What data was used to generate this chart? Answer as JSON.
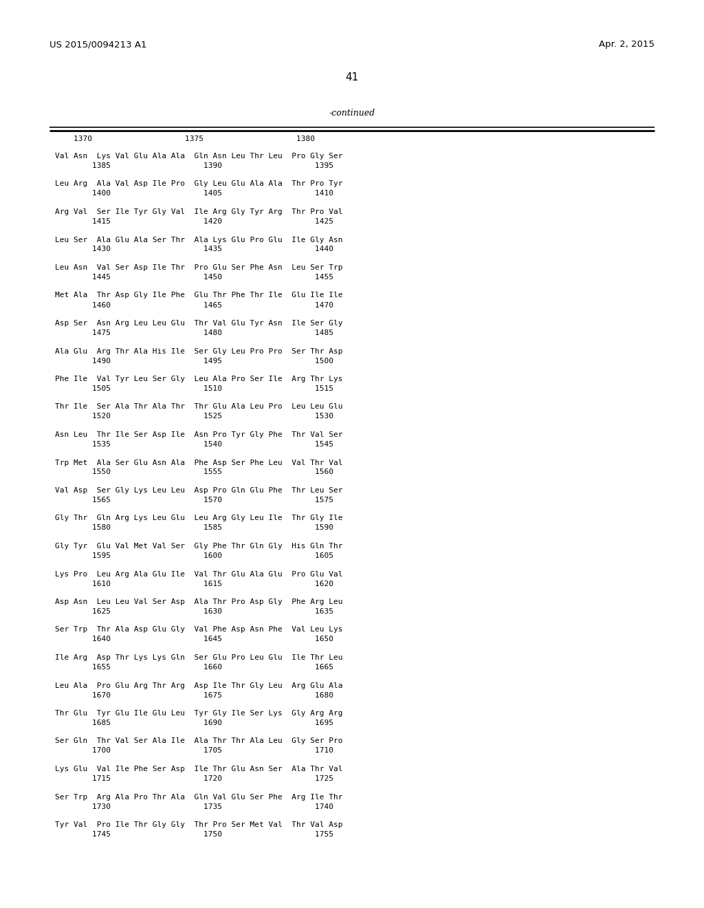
{
  "patent_number": "US 2015/0094213 A1",
  "date": "Apr. 2, 2015",
  "page_number": "41",
  "continued_label": "-continued",
  "background_color": "#ffffff",
  "text_color": "#000000",
  "number_line": "    1370                    1375                    1380",
  "sequence_lines": [
    [
      "Val Asn  Lys Val Glu Ala Ala  Gln Asn Leu Thr Leu  Pro Gly Ser",
      "        1385                    1390                    1395"
    ],
    [
      "Leu Arg  Ala Val Asp Ile Pro  Gly Leu Glu Ala Ala  Thr Pro Tyr",
      "        1400                    1405                    1410"
    ],
    [
      "Arg Val  Ser Ile Tyr Gly Val  Ile Arg Gly Tyr Arg  Thr Pro Val",
      "        1415                    1420                    1425"
    ],
    [
      "Leu Ser  Ala Glu Ala Ser Thr  Ala Lys Glu Pro Glu  Ile Gly Asn",
      "        1430                    1435                    1440"
    ],
    [
      "Leu Asn  Val Ser Asp Ile Thr  Pro Glu Ser Phe Asn  Leu Ser Trp",
      "        1445                    1450                    1455"
    ],
    [
      "Met Ala  Thr Asp Gly Ile Phe  Glu Thr Phe Thr Ile  Glu Ile Ile",
      "        1460                    1465                    1470"
    ],
    [
      "Asp Ser  Asn Arg Leu Leu Glu  Thr Val Glu Tyr Asn  Ile Ser Gly",
      "        1475                    1480                    1485"
    ],
    [
      "Ala Glu  Arg Thr Ala His Ile  Ser Gly Leu Pro Pro  Ser Thr Asp",
      "        1490                    1495                    1500"
    ],
    [
      "Phe Ile  Val Tyr Leu Ser Gly  Leu Ala Pro Ser Ile  Arg Thr Lys",
      "        1505                    1510                    1515"
    ],
    [
      "Thr Ile  Ser Ala Thr Ala Thr  Thr Glu Ala Leu Pro  Leu Leu Glu",
      "        1520                    1525                    1530"
    ],
    [
      "Asn Leu  Thr Ile Ser Asp Ile  Asn Pro Tyr Gly Phe  Thr Val Ser",
      "        1535                    1540                    1545"
    ],
    [
      "Trp Met  Ala Ser Glu Asn Ala  Phe Asp Ser Phe Leu  Val Thr Val",
      "        1550                    1555                    1560"
    ],
    [
      "Val Asp  Ser Gly Lys Leu Leu  Asp Pro Gln Glu Phe  Thr Leu Ser",
      "        1565                    1570                    1575"
    ],
    [
      "Gly Thr  Gln Arg Lys Leu Glu  Leu Arg Gly Leu Ile  Thr Gly Ile",
      "        1580                    1585                    1590"
    ],
    [
      "Gly Tyr  Glu Val Met Val Ser  Gly Phe Thr Gln Gly  His Gln Thr",
      "        1595                    1600                    1605"
    ],
    [
      "Lys Pro  Leu Arg Ala Glu Ile  Val Thr Glu Ala Glu  Pro Glu Val",
      "        1610                    1615                    1620"
    ],
    [
      "Asp Asn  Leu Leu Val Ser Asp  Ala Thr Pro Asp Gly  Phe Arg Leu",
      "        1625                    1630                    1635"
    ],
    [
      "Ser Trp  Thr Ala Asp Glu Gly  Val Phe Asp Asn Phe  Val Leu Lys",
      "        1640                    1645                    1650"
    ],
    [
      "Ile Arg  Asp Thr Lys Lys Gln  Ser Glu Pro Leu Glu  Ile Thr Leu",
      "        1655                    1660                    1665"
    ],
    [
      "Leu Ala  Pro Glu Arg Thr Arg  Asp Ile Thr Gly Leu  Arg Glu Ala",
      "        1670                    1675                    1680"
    ],
    [
      "Thr Glu  Tyr Glu Ile Glu Leu  Tyr Gly Ile Ser Lys  Gly Arg Arg",
      "        1685                    1690                    1695"
    ],
    [
      "Ser Gln  Thr Val Ser Ala Ile  Ala Thr Thr Ala Leu  Gly Ser Pro",
      "        1700                    1705                    1710"
    ],
    [
      "Lys Glu  Val Ile Phe Ser Asp  Ile Thr Glu Asn Ser  Ala Thr Val",
      "        1715                    1720                    1725"
    ],
    [
      "Ser Trp  Arg Ala Pro Thr Ala  Gln Val Glu Ser Phe  Arg Ile Thr",
      "        1730                    1735                    1740"
    ],
    [
      "Tyr Val  Pro Ile Thr Gly Gly  Thr Pro Ser Met Val  Thr Val Asp",
      "        1745                    1750                    1755"
    ]
  ]
}
